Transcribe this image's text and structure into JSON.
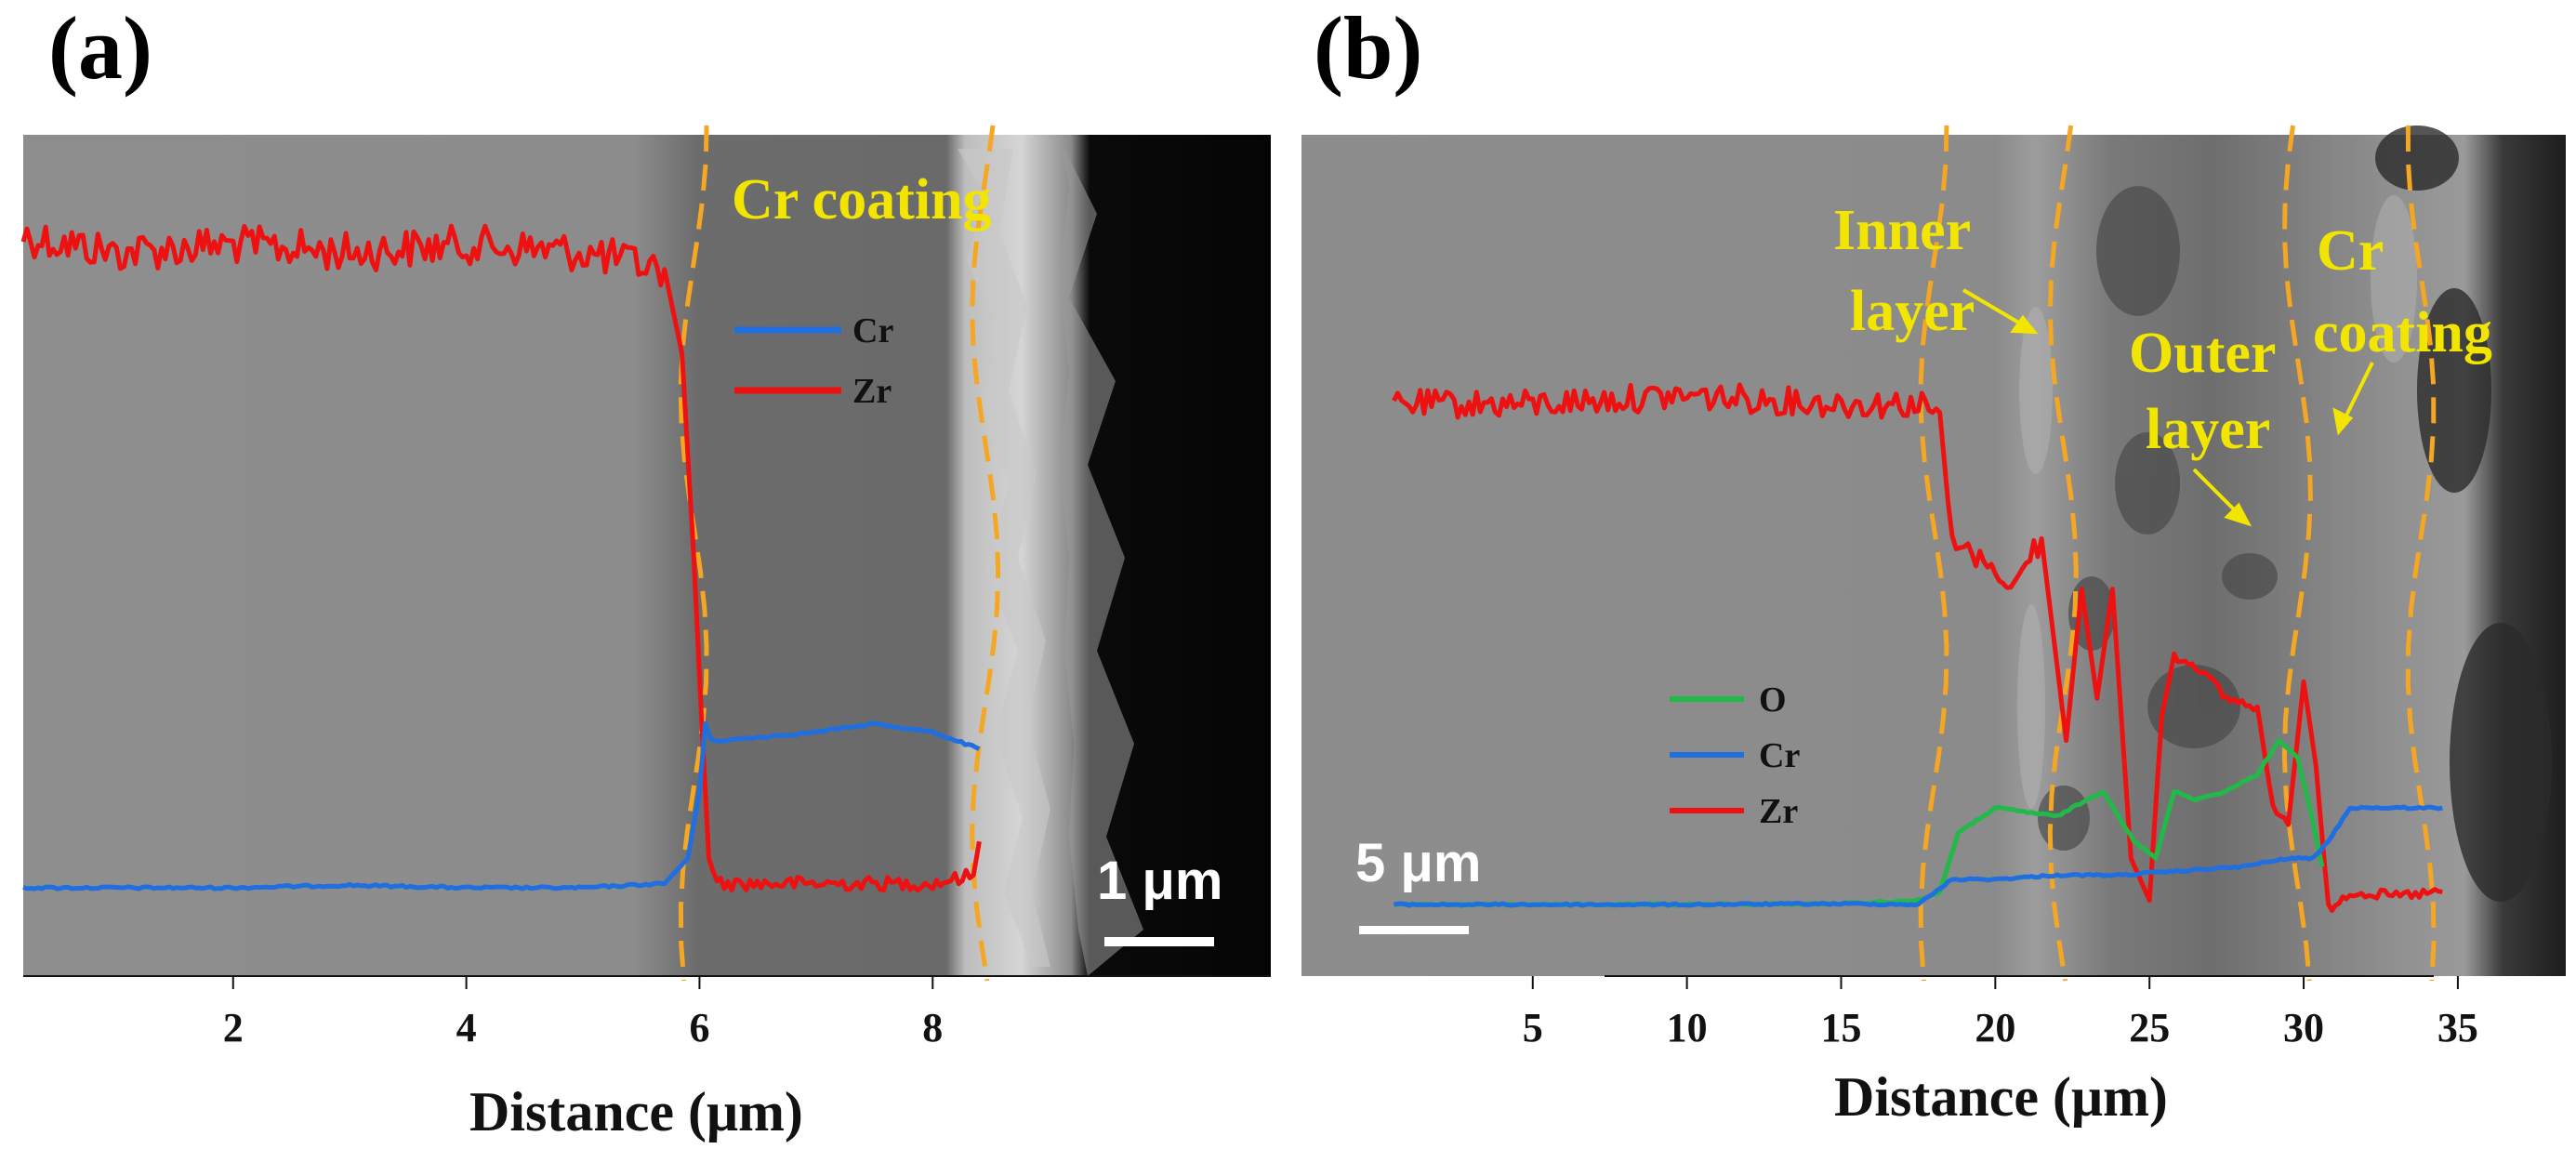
{
  "figure": {
    "panel_a_label": "(a)",
    "panel_b_label": "(b)"
  },
  "chart_data": [
    {
      "type": "line",
      "panel": "a",
      "title": "",
      "xlabel": "Distance (μm)",
      "ylabel": "",
      "xlim": [
        0.2,
        10.9
      ],
      "ylim": [
        0,
        1
      ],
      "xticks": [
        "2",
        "4",
        "6",
        "8"
      ],
      "xtick_values": [
        2,
        4,
        6,
        8
      ],
      "annotations": [
        "Cr coating"
      ],
      "scale_bar": "1 μm",
      "legend": [
        "Cr",
        "Zr"
      ],
      "colors": {
        "Cr": "#1f6fe0",
        "Zr": "#ee1111"
      },
      "series": [
        {
          "name": "Zr",
          "x": [
            0.2,
            1.0,
            2.0,
            3.0,
            4.0,
            5.0,
            5.7,
            5.85,
            5.95,
            6.02,
            6.08,
            6.15,
            7.0,
            8.0,
            8.35,
            8.4
          ],
          "y": [
            0.88,
            0.86,
            0.87,
            0.86,
            0.87,
            0.86,
            0.84,
            0.74,
            0.5,
            0.3,
            0.14,
            0.11,
            0.11,
            0.11,
            0.12,
            0.16
          ]
        },
        {
          "name": "Cr",
          "x": [
            0.2,
            1.0,
            2.0,
            3.0,
            4.0,
            5.0,
            5.7,
            5.9,
            6.0,
            6.05,
            6.1,
            6.2,
            7.0,
            7.5,
            8.0,
            8.4
          ],
          "y": [
            0.105,
            0.105,
            0.105,
            0.108,
            0.105,
            0.105,
            0.11,
            0.14,
            0.22,
            0.3,
            0.28,
            0.28,
            0.29,
            0.3,
            0.29,
            0.27
          ]
        }
      ],
      "boundaries_um": [
        5.95,
        8.45
      ]
    },
    {
      "type": "line",
      "panel": "b",
      "title": "",
      "xlabel": "Distance (μm)",
      "ylabel": "",
      "xlim": [
        -2.5,
        38.5
      ],
      "ylim": [
        0,
        1
      ],
      "xticks": [
        "5",
        "10",
        "15",
        "20",
        "25",
        "30",
        "35"
      ],
      "xtick_values": [
        5,
        10,
        15,
        20,
        25,
        30,
        35
      ],
      "annotations": [
        "Inner",
        "layer",
        "Outer",
        "layer",
        "Cr",
        "coating"
      ],
      "scale_bar": "5 μm",
      "legend": [
        "O",
        "Cr",
        "Zr"
      ],
      "colors": {
        "O": "#22b84a",
        "Cr": "#1f6fe0",
        "Zr": "#ee1111"
      },
      "series": [
        {
          "name": "Zr",
          "x": [
            0.5,
            5,
            10,
            15,
            17.5,
            18.2,
            18.6,
            19.5,
            20.5,
            21.5,
            22.3,
            22.8,
            23.3,
            23.8,
            24.4,
            25.0,
            25.4,
            25.8,
            26.5,
            27.5,
            28.5,
            29.0,
            29.5,
            30.0,
            30.4,
            30.8,
            31.5,
            33,
            34.5
          ],
          "y": [
            0.68,
            0.68,
            0.69,
            0.68,
            0.68,
            0.67,
            0.51,
            0.5,
            0.46,
            0.52,
            0.28,
            0.46,
            0.33,
            0.46,
            0.14,
            0.09,
            0.31,
            0.38,
            0.37,
            0.33,
            0.32,
            0.2,
            0.18,
            0.35,
            0.25,
            0.08,
            0.1,
            0.095,
            0.1
          ]
        },
        {
          "name": "O",
          "x": [
            0.5,
            5,
            10,
            15,
            17.5,
            18.2,
            18.8,
            20,
            22,
            23.5,
            24.5,
            25.2,
            25.8,
            26.5,
            27.5,
            28.5,
            29.2,
            29.8,
            30.2,
            30.6
          ],
          "y": [
            0.085,
            0.085,
            0.085,
            0.086,
            0.09,
            0.1,
            0.17,
            0.2,
            0.19,
            0.22,
            0.16,
            0.14,
            0.22,
            0.21,
            0.22,
            0.24,
            0.28,
            0.26,
            0.2,
            0.13
          ]
        },
        {
          "name": "Cr",
          "x": [
            0.5,
            5,
            10,
            15,
            17.5,
            18.6,
            20,
            22,
            24,
            26,
            28,
            29.5,
            30.3,
            30.8,
            31.5,
            33,
            34.5
          ],
          "y": [
            0.085,
            0.085,
            0.085,
            0.086,
            0.085,
            0.115,
            0.115,
            0.12,
            0.12,
            0.125,
            0.13,
            0.14,
            0.14,
            0.16,
            0.2,
            0.2,
            0.2
          ]
        }
      ],
      "boundaries_um": [
        18.0,
        22.2,
        29.8,
        33.8
      ]
    }
  ]
}
